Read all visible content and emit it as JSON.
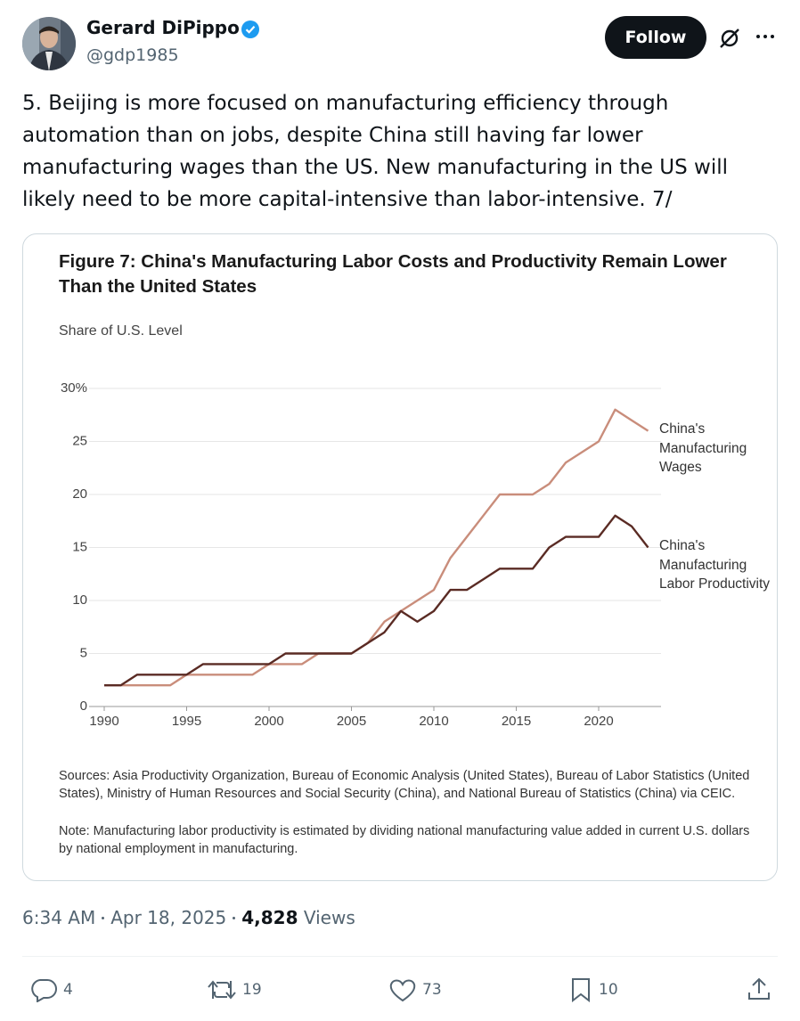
{
  "author": {
    "name": "Gerard DiPippo",
    "handle": "@gdp1985"
  },
  "follow": "Follow",
  "text": "5. Beijing is more focused on manufacturing efficiency through automation than on jobs, despite China still having far lower manufacturing wages than the US. New manufacturing in the US will likely need to be more capital-intensive than labor-intensive. 7/",
  "chart_data": {
    "type": "line",
    "title": "Figure 7: China's Manufacturing Labor Costs and Productivity Remain Lower Than the United States",
    "y_label": "Share of U.S. Level",
    "x": [
      1990,
      1991,
      1992,
      1993,
      1994,
      1995,
      1996,
      1997,
      1998,
      1999,
      2000,
      2001,
      2002,
      2003,
      2004,
      2005,
      2006,
      2007,
      2008,
      2009,
      2010,
      2011,
      2012,
      2013,
      2014,
      2015,
      2016,
      2017,
      2018,
      2019,
      2020,
      2021,
      2022,
      2023
    ],
    "series": [
      {
        "name": "China's Manufacturing Wages",
        "color": "#c98d7b",
        "values": [
          2,
          2,
          2,
          2,
          2,
          3,
          3,
          3,
          3,
          3,
          4,
          4,
          4,
          5,
          5,
          5,
          6,
          8,
          9,
          10,
          11,
          14,
          16,
          18,
          20,
          20,
          20,
          21,
          23,
          24,
          25,
          28,
          27,
          26
        ]
      },
      {
        "name": "China's Manufacturing Labor Productivity",
        "color": "#5a2b24",
        "values": [
          2,
          2,
          3,
          3,
          3,
          3,
          4,
          4,
          4,
          4,
          4,
          5,
          5,
          5,
          5,
          5,
          6,
          7,
          9,
          8,
          9,
          11,
          11,
          12,
          13,
          13,
          13,
          15,
          16,
          16,
          16,
          18,
          17,
          15
        ]
      }
    ],
    "xlim": [
      1989,
      2024
    ],
    "xticks": [
      1990,
      1995,
      2000,
      2005,
      2010,
      2015,
      2020
    ],
    "ylim": [
      0,
      30
    ],
    "yticks": [
      0,
      5,
      10,
      15,
      20,
      25,
      {
        "value": 30,
        "label": "30%"
      }
    ],
    "grid": true,
    "sources": "Sources: Asia Productivity Organization, Bureau of Economic Analysis (United States), Bureau of Labor Statistics (United States), Ministry of Human Resources and Social Security (China), and National Bureau of Statistics (China) via CEIC.",
    "note": "Note: Manufacturing labor productivity is estimated by dividing national manufacturing value added in current U.S. dollars by national employment in manufacturing."
  },
  "meta": {
    "time": "6:34 AM",
    "date": "Apr 18, 2025",
    "views": "4,828",
    "views_label": "Views"
  },
  "actions": {
    "replies": 4,
    "reposts": 19,
    "likes": 73,
    "bookmarks": 10
  }
}
